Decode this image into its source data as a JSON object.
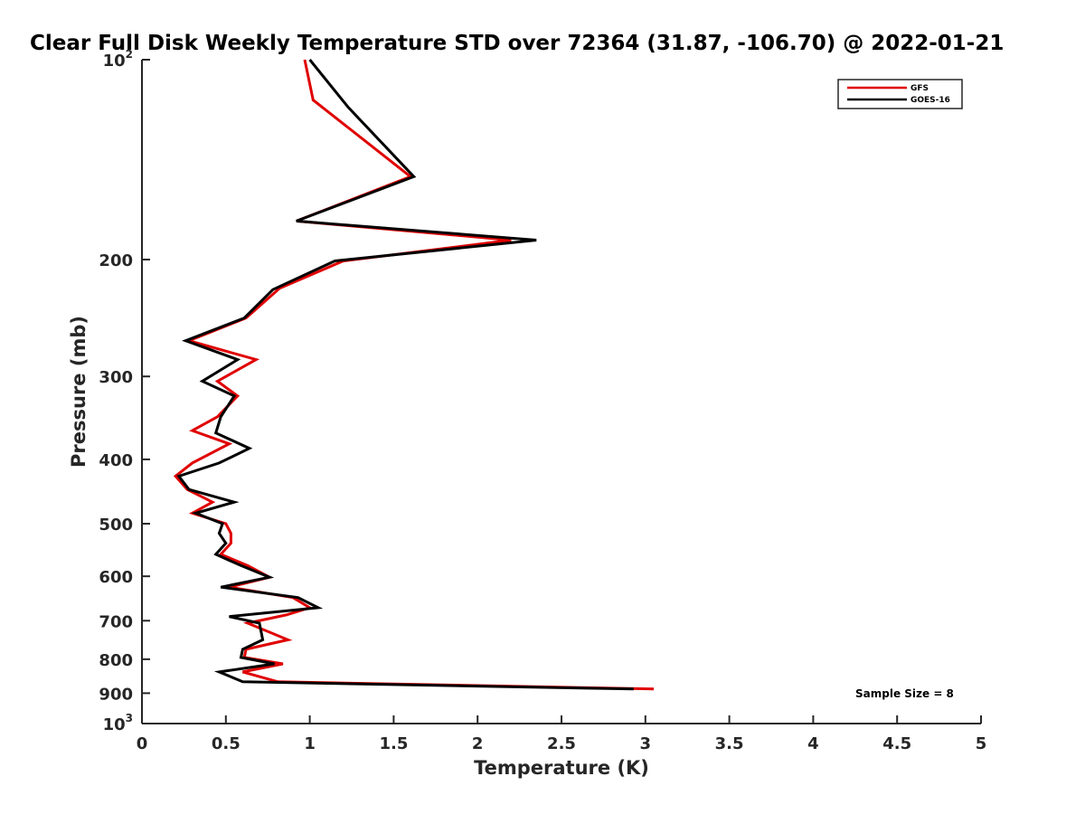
{
  "chart_data": {
    "type": "line",
    "title": "Clear Full Disk Weekly Temperature STD over 72364 (31.87, -106.70) @ 2022-01-21",
    "xlabel": "Temperature (K)",
    "ylabel": "Pressure (mb)",
    "xlim": [
      0,
      5
    ],
    "ylim": [
      100,
      1000
    ],
    "yscale": "log",
    "y_reversed": true,
    "grid": false,
    "legend_position": "top-right",
    "x_ticks": [
      {
        "value": 0,
        "label": "0"
      },
      {
        "value": 0.5,
        "label": "0.5"
      },
      {
        "value": 1,
        "label": "1"
      },
      {
        "value": 1.5,
        "label": "1.5"
      },
      {
        "value": 2,
        "label": "2"
      },
      {
        "value": 2.5,
        "label": "2.5"
      },
      {
        "value": 3,
        "label": "3"
      },
      {
        "value": 3.5,
        "label": "3.5"
      },
      {
        "value": 4,
        "label": "4"
      },
      {
        "value": 4.5,
        "label": "4.5"
      },
      {
        "value": 5,
        "label": "5"
      }
    ],
    "y_ticks": [
      {
        "value": 100,
        "base": "10",
        "exp": "2"
      },
      {
        "value": 200,
        "label": "200"
      },
      {
        "value": 300,
        "label": "300"
      },
      {
        "value": 400,
        "label": "400"
      },
      {
        "value": 500,
        "label": "500"
      },
      {
        "value": 600,
        "label": "600"
      },
      {
        "value": 700,
        "label": "700"
      },
      {
        "value": 800,
        "label": "800"
      },
      {
        "value": 900,
        "label": "900"
      },
      {
        "value": 1000,
        "base": "10",
        "exp": "3"
      }
    ],
    "series": [
      {
        "name": "GFS",
        "color": "#e00000",
        "points": [
          [
            0.97,
            100
          ],
          [
            1.02,
            115
          ],
          [
            1.6,
            150
          ],
          [
            0.92,
            175
          ],
          [
            2.2,
            187
          ],
          [
            1.2,
            201
          ],
          [
            0.82,
            221
          ],
          [
            0.62,
            245
          ],
          [
            0.28,
            265
          ],
          [
            0.68,
            283
          ],
          [
            0.45,
            305
          ],
          [
            0.57,
            321
          ],
          [
            0.45,
            345
          ],
          [
            0.3,
            362
          ],
          [
            0.52,
            379
          ],
          [
            0.3,
            405
          ],
          [
            0.2,
            424
          ],
          [
            0.27,
            444
          ],
          [
            0.42,
            464
          ],
          [
            0.3,
            482
          ],
          [
            0.5,
            500
          ],
          [
            0.53,
            517
          ],
          [
            0.53,
            535
          ],
          [
            0.47,
            556
          ],
          [
            0.63,
            578
          ],
          [
            0.76,
            602
          ],
          [
            0.52,
            623
          ],
          [
            0.9,
            646
          ],
          [
            1.0,
            669
          ],
          [
            0.86,
            686
          ],
          [
            0.63,
            706
          ],
          [
            0.87,
            748
          ],
          [
            0.62,
            773
          ],
          [
            0.61,
            795
          ],
          [
            0.84,
            813
          ],
          [
            0.6,
            836
          ],
          [
            0.81,
            865
          ],
          [
            3.05,
            887
          ]
        ]
      },
      {
        "name": "GOES-16",
        "color": "#000000",
        "points": [
          [
            1.0,
            100
          ],
          [
            1.23,
            118
          ],
          [
            1.62,
            150
          ],
          [
            0.92,
            175
          ],
          [
            2.35,
            187
          ],
          [
            1.15,
            201
          ],
          [
            0.78,
            222
          ],
          [
            0.61,
            245
          ],
          [
            0.26,
            265
          ],
          [
            0.57,
            283
          ],
          [
            0.36,
            305
          ],
          [
            0.55,
            321
          ],
          [
            0.47,
            345
          ],
          [
            0.44,
            365
          ],
          [
            0.64,
            385
          ],
          [
            0.46,
            405
          ],
          [
            0.22,
            424
          ],
          [
            0.28,
            444
          ],
          [
            0.55,
            464
          ],
          [
            0.32,
            482
          ],
          [
            0.48,
            500
          ],
          [
            0.46,
            517
          ],
          [
            0.5,
            535
          ],
          [
            0.44,
            556
          ],
          [
            0.59,
            578
          ],
          [
            0.76,
            602
          ],
          [
            0.47,
            623
          ],
          [
            0.93,
            646
          ],
          [
            1.05,
            669
          ],
          [
            0.52,
            690
          ],
          [
            0.7,
            706
          ],
          [
            0.72,
            748
          ],
          [
            0.6,
            773
          ],
          [
            0.59,
            795
          ],
          [
            0.79,
            813
          ],
          [
            0.46,
            836
          ],
          [
            0.6,
            865
          ],
          [
            2.93,
            887
          ]
        ]
      }
    ],
    "annotation": "Sample Size = 8"
  }
}
